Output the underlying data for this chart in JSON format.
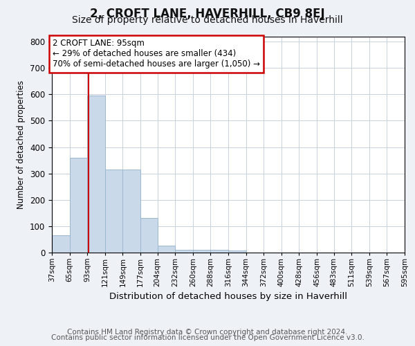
{
  "title": "2, CROFT LANE, HAVERHILL, CB9 8EJ",
  "subtitle": "Size of property relative to detached houses in Haverhill",
  "xlabel": "Distribution of detached houses by size in Haverhill",
  "ylabel": "Number of detached properties",
  "bin_labels": [
    "37sqm",
    "65sqm",
    "93sqm",
    "121sqm",
    "149sqm",
    "177sqm",
    "204sqm",
    "232sqm",
    "260sqm",
    "288sqm",
    "316sqm",
    "344sqm",
    "372sqm",
    "400sqm",
    "428sqm",
    "456sqm",
    "483sqm",
    "511sqm",
    "539sqm",
    "567sqm",
    "595sqm"
  ],
  "bar_heights": [
    65,
    360,
    595,
    315,
    315,
    130,
    27,
    10,
    10,
    10,
    7,
    0,
    0,
    0,
    0,
    0,
    0,
    0,
    0,
    0
  ],
  "bar_color": "#c9d9ea",
  "bar_edge_color": "#9ab8d0",
  "red_line_x": 95,
  "bin_edges_numeric": [
    37,
    65,
    93,
    121,
    149,
    177,
    204,
    232,
    260,
    288,
    316,
    344,
    372,
    400,
    428,
    456,
    483,
    511,
    539,
    567,
    595
  ],
  "ylim": [
    0,
    820
  ],
  "yticks": [
    0,
    100,
    200,
    300,
    400,
    500,
    600,
    700,
    800
  ],
  "annotation_text": "2 CROFT LANE: 95sqm\n← 29% of detached houses are smaller (434)\n70% of semi-detached houses are larger (1,050) →",
  "annotation_box_color": "#ffffff",
  "annotation_box_edge_color": "#cc0000",
  "footer_line1": "Contains HM Land Registry data © Crown copyright and database right 2024.",
  "footer_line2": "Contains public sector information licensed under the Open Government Licence v3.0.",
  "background_color": "#eef2f7",
  "plot_background_color": "#ffffff",
  "grid_color": "#c8d0dc",
  "title_fontsize": 12,
  "subtitle_fontsize": 10,
  "footer_fontsize": 7.5
}
